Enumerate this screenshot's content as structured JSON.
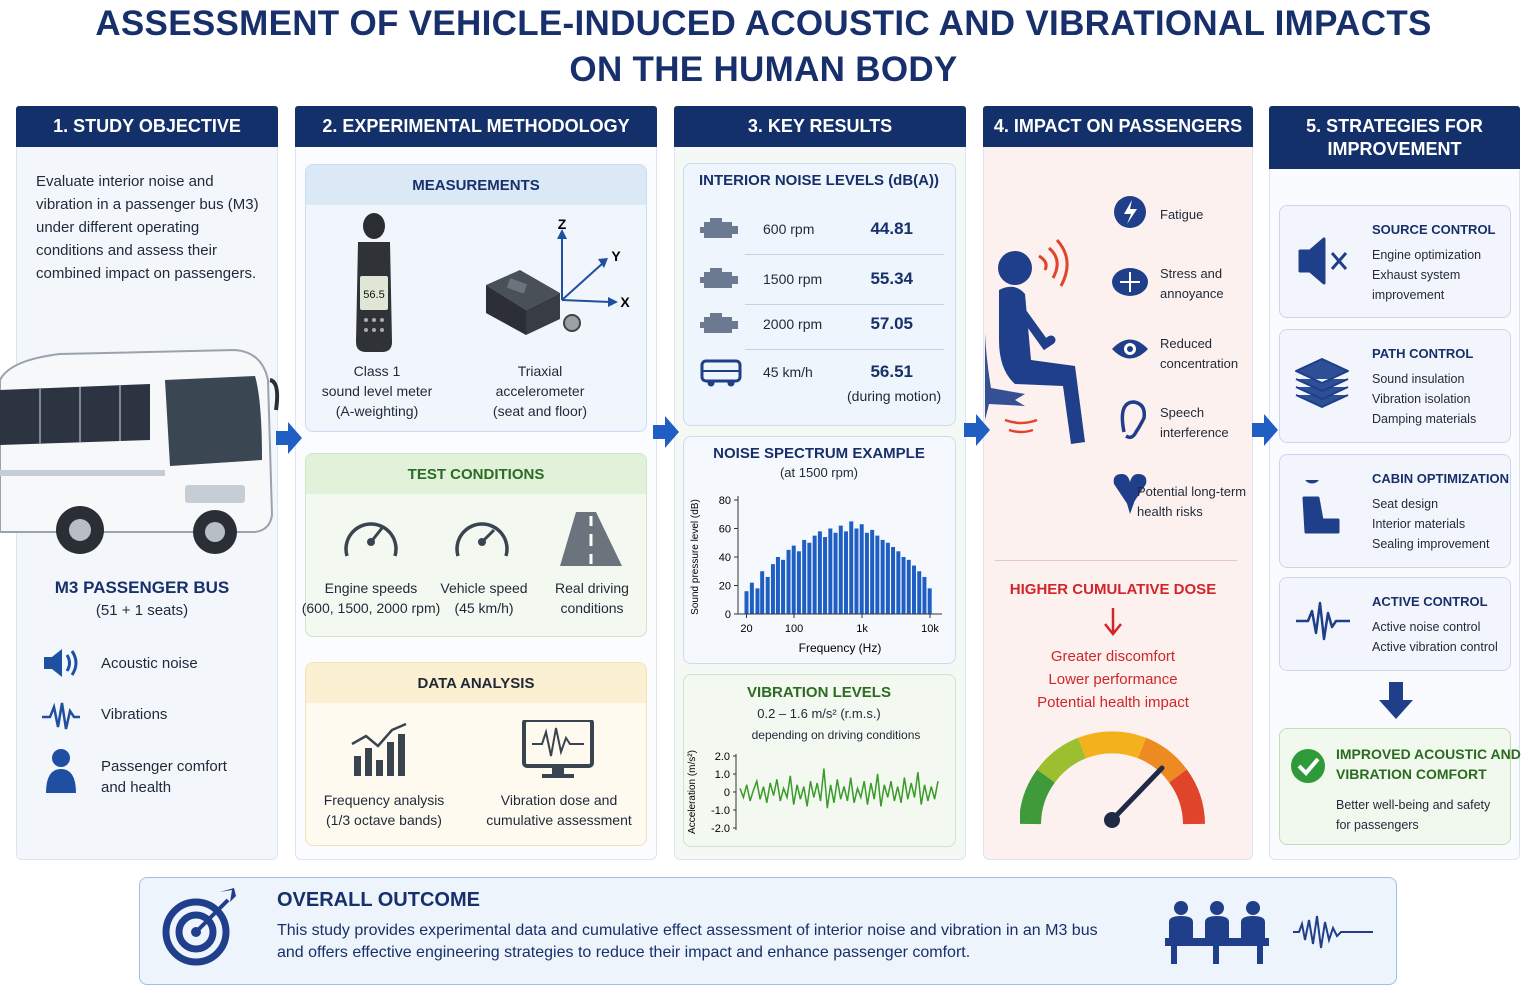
{
  "title": [
    "ASSESSMENT OF VEHICLE-INDUCED ACOUSTIC AND VIBRATIONAL IMPACTS",
    "ON THE HUMAN BODY"
  ],
  "objective": {
    "heading": "1. STUDY OBJECTIVE",
    "text": "Evaluate interior noise and\nvibration in a passenger bus (M3)\nunder different operating\nconditions and assess their\ncombined impact on passengers.",
    "bus_name": "M3 PASSENGER BUS",
    "bus_seats": "(51 + 1 seats)",
    "factors": [
      "Acoustic noise",
      "Vibrations",
      "Passenger comfort\nand health"
    ]
  },
  "methodology": {
    "heading": "2. EXPERIMENTAL METHODOLOGY",
    "measurements": {
      "title": "MEASUREMENTS",
      "meter_display": "56.5",
      "axes": [
        "Z",
        "Y",
        "X"
      ],
      "items": [
        "Class 1\nsound level meter\n(A-weighting)",
        "Triaxial\naccelerometer\n(seat and floor)"
      ]
    },
    "test_conditions": {
      "title": "TEST CONDITIONS",
      "items": [
        "Engine speeds\n(600, 1500, 2000 rpm)",
        "Vehicle speed\n(45 km/h)",
        "Real driving\nconditions"
      ]
    },
    "data_analysis": {
      "title": "DATA ANALYSIS",
      "items": [
        "Frequency analysis\n(1/3 octave bands)",
        "Vibration dose and\ncumulative assessment"
      ]
    }
  },
  "key_results": {
    "heading": "3. KEY RESULTS",
    "noise_levels": {
      "title": "INTERIOR NOISE LEVELS (dB(A))",
      "rows": [
        {
          "label": "600 rpm",
          "value": 44.81
        },
        {
          "label": "1500 rpm",
          "value": 55.34
        },
        {
          "label": "2000 rpm",
          "value": 57.05
        },
        {
          "label": "45 km/h",
          "value": 56.51,
          "note": "(during motion)"
        }
      ]
    },
    "spectrum": {
      "title": "NOISE SPECTRUM EXAMPLE",
      "subtitle": "(at 1500 rpm)",
      "y_label": "Sound pressure level (dB)",
      "x_label": "Frequency (Hz)",
      "log_x": true,
      "color": "#1f5fc4",
      "xlim": [
        15,
        15000
      ],
      "ylim": [
        0,
        80
      ],
      "xticks": [
        20,
        100,
        {
          "value": 1000,
          "label": "1k"
        },
        {
          "value": 10000,
          "label": "10k"
        }
      ],
      "yticks": [
        0,
        20,
        40,
        60,
        80
      ],
      "x": [
        20,
        24,
        29,
        34,
        41,
        49,
        58,
        69,
        83,
        99,
        118,
        141,
        168,
        201,
        240,
        286,
        342,
        408,
        487,
        581,
        694,
        828,
        989,
        1180,
        1410,
        1680,
        2010,
        2400,
        2860,
        3420,
        4080,
        4870,
        5810,
        6940,
        8280,
        9890
      ],
      "values": [
        16,
        22,
        18,
        30,
        26,
        35,
        40,
        38,
        45,
        48,
        44,
        52,
        50,
        55,
        58,
        54,
        60,
        57,
        62,
        58,
        65,
        60,
        63,
        57,
        59,
        55,
        52,
        50,
        47,
        44,
        40,
        38,
        34,
        30,
        26,
        18
      ]
    },
    "vibration": {
      "title": "VIBRATION LEVELS",
      "range": "0.2 – 1.6 m/s² (r.m.s.)",
      "note": "depending on driving conditions",
      "y_label": "Acceleration (m/s²)",
      "color": "#3a9a2a",
      "ylim": [
        -2,
        2
      ],
      "yticks": [
        {
          "value": 2,
          "label": "2.0"
        },
        {
          "value": 1,
          "label": "1.0"
        },
        0,
        {
          "value": -1,
          "label": "-1.0"
        },
        {
          "value": -2,
          "label": "-2.0"
        }
      ],
      "values": [
        0.2,
        -0.3,
        0.4,
        -0.5,
        0.1,
        0.6,
        -0.4,
        0.3,
        -0.6,
        0.5,
        -0.2,
        0.7,
        -0.5,
        0.2,
        -0.3,
        0.9,
        -0.7,
        0.4,
        -0.4,
        0.3,
        -0.8,
        0.6,
        -0.3,
        0.5,
        -0.5,
        1.3,
        -0.9,
        0.4,
        -0.6,
        0.7,
        -0.4,
        0.3,
        -0.5,
        0.8,
        -0.6,
        0.2,
        -0.3,
        0.6,
        -0.7,
        0.5,
        -0.4,
        1.0,
        -0.8,
        0.4,
        -0.3,
        0.6,
        -0.5,
        0.3,
        -0.6,
        0.8,
        -0.4,
        0.5,
        -0.3,
        1.1,
        -0.7,
        0.4,
        -0.5,
        0.3,
        -0.4,
        0.6
      ]
    }
  },
  "impact": {
    "heading": "4. IMPACT ON PASSENGERS",
    "effects": [
      "Fatigue",
      "Stress and\nannoyance",
      "Reduced\nconcentration",
      "Speech\ninterference",
      "Potential long-term\nhealth risks"
    ],
    "dose_title": "HIGHER CUMULATIVE DOSE",
    "consequences": [
      "Greater discomfort",
      "Lower performance",
      "Potential health impact"
    ]
  },
  "strategies": {
    "heading": "5. STRATEGIES FOR\nIMPROVEMENT",
    "items": [
      {
        "title": "SOURCE CONTROL",
        "points": [
          "Engine optimization",
          "Exhaust system\nimprovement"
        ]
      },
      {
        "title": "PATH CONTROL",
        "points": [
          "Sound insulation",
          "Vibration isolation",
          "Damping materials"
        ]
      },
      {
        "title": "CABIN OPTIMIZATION",
        "points": [
          "Seat design",
          "Interior materials",
          "Sealing improvement"
        ]
      },
      {
        "title": "ACTIVE CONTROL",
        "points": [
          "Active noise control",
          "Active vibration control"
        ]
      }
    ],
    "result": {
      "title": "IMPROVED ACOUSTIC AND\nVIBRATION COMFORT",
      "text": "Better well-being and safety\nfor passengers"
    }
  },
  "outcome": {
    "title": "OVERALL OUTCOME",
    "text": "This study provides experimental data and cumulative effect assessment of interior noise and vibration in an M3 bus\nand offers effective engineering strategies to reduce their impact and enhance passenger comfort."
  }
}
